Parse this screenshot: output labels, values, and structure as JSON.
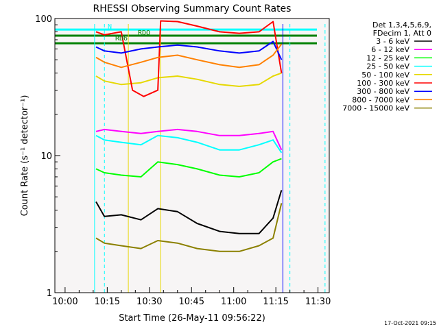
{
  "chart_data": {
    "type": "line",
    "title": "RHESSI Observing Summary Count Rates",
    "xlabel": "Start Time (26-May-11 09:56:22)",
    "ylabel": "Count Rate (s⁻¹ detector⁻¹)",
    "yscale": "log",
    "ylim": [
      1,
      100
    ],
    "xlim": [
      "09:56:22",
      "11:34:00"
    ],
    "y_ticks": [
      "1",
      "10",
      "100"
    ],
    "x_ticks": [
      "10:00",
      "10:15",
      "10:30",
      "10:45",
      "11:00",
      "11:15",
      "11:30"
    ],
    "footer": "17-Oct-2021 09:15",
    "legend_header": [
      "Det 1,3,4,5,6,9,",
      "FDecim 1, Att 0"
    ],
    "annotations": [
      "RDO",
      "RD6",
      "N"
    ],
    "series": [
      {
        "name": "3 - 6 keV",
        "color": "#000000",
        "points": [
          [
            "10:11",
            4.6
          ],
          [
            "10:14",
            3.6
          ],
          [
            "10:20",
            3.7
          ],
          [
            "10:27",
            3.4
          ],
          [
            "10:33",
            4.1
          ],
          [
            "10:40",
            3.9
          ],
          [
            "10:47",
            3.2
          ],
          [
            "10:55",
            2.8
          ],
          [
            "11:02",
            2.7
          ],
          [
            "11:09",
            2.7
          ],
          [
            "11:14",
            3.5
          ],
          [
            "11:17",
            5.6
          ]
        ]
      },
      {
        "name": "6 - 12 keV",
        "color": "#ff00ff",
        "points": [
          [
            "10:11",
            15
          ],
          [
            "10:14",
            15.5
          ],
          [
            "10:20",
            15
          ],
          [
            "10:27",
            14.5
          ],
          [
            "10:33",
            15
          ],
          [
            "10:40",
            15.5
          ],
          [
            "10:47",
            15
          ],
          [
            "10:55",
            14
          ],
          [
            "11:02",
            14
          ],
          [
            "11:09",
            14.5
          ],
          [
            "11:14",
            15
          ],
          [
            "11:17",
            11
          ]
        ]
      },
      {
        "name": "12 - 25 keV",
        "color": "#00ff00",
        "points": [
          [
            "10:11",
            8
          ],
          [
            "10:14",
            7.5
          ],
          [
            "10:20",
            7.2
          ],
          [
            "10:27",
            7
          ],
          [
            "10:33",
            9
          ],
          [
            "10:40",
            8.6
          ],
          [
            "10:47",
            8
          ],
          [
            "10:55",
            7.2
          ],
          [
            "11:02",
            7
          ],
          [
            "11:09",
            7.5
          ],
          [
            "11:14",
            9
          ],
          [
            "11:17",
            9.5
          ]
        ]
      },
      {
        "name": "25 - 50 keV",
        "color": "#00ffff",
        "points": [
          [
            "10:11",
            14
          ],
          [
            "10:14",
            13
          ],
          [
            "10:20",
            12.5
          ],
          [
            "10:27",
            12
          ],
          [
            "10:33",
            14
          ],
          [
            "10:40",
            13.5
          ],
          [
            "10:47",
            12.5
          ],
          [
            "10:55",
            11
          ],
          [
            "11:02",
            11
          ],
          [
            "11:09",
            12
          ],
          [
            "11:14",
            13
          ],
          [
            "11:17",
            10.5
          ]
        ]
      },
      {
        "name": "50 - 100 keV",
        "color": "#e6d800",
        "points": [
          [
            "10:11",
            38
          ],
          [
            "10:14",
            35
          ],
          [
            "10:20",
            33
          ],
          [
            "10:27",
            34
          ],
          [
            "10:33",
            37
          ],
          [
            "10:40",
            38
          ],
          [
            "10:47",
            36
          ],
          [
            "10:55",
            33
          ],
          [
            "11:02",
            32
          ],
          [
            "11:09",
            33
          ],
          [
            "11:14",
            38
          ],
          [
            "11:17",
            40
          ]
        ]
      },
      {
        "name": "100 - 300 keV",
        "color": "#ff0000",
        "points": [
          [
            "10:11",
            80
          ],
          [
            "10:14",
            76
          ],
          [
            "10:20",
            80
          ],
          [
            "10:24",
            30
          ],
          [
            "10:28",
            27
          ],
          [
            "10:33",
            30
          ],
          [
            "10:34",
            96
          ],
          [
            "10:40",
            95
          ],
          [
            "10:47",
            88
          ],
          [
            "10:55",
            80
          ],
          [
            "11:02",
            78
          ],
          [
            "11:09",
            80
          ],
          [
            "11:14",
            95
          ],
          [
            "11:17",
            40
          ]
        ]
      },
      {
        "name": "300 - 800 keV",
        "color": "#0000ff",
        "points": [
          [
            "10:11",
            62
          ],
          [
            "10:14",
            58
          ],
          [
            "10:20",
            56
          ],
          [
            "10:27",
            60
          ],
          [
            "10:33",
            62
          ],
          [
            "10:40",
            64
          ],
          [
            "10:47",
            62
          ],
          [
            "10:55",
            58
          ],
          [
            "11:02",
            56
          ],
          [
            "11:09",
            58
          ],
          [
            "11:14",
            68
          ],
          [
            "11:17",
            50
          ]
        ]
      },
      {
        "name": "800 - 7000 keV",
        "color": "#ff8000",
        "points": [
          [
            "10:11",
            52
          ],
          [
            "10:14",
            48
          ],
          [
            "10:20",
            44
          ],
          [
            "10:27",
            48
          ],
          [
            "10:33",
            52
          ],
          [
            "10:40",
            54
          ],
          [
            "10:47",
            50
          ],
          [
            "10:55",
            46
          ],
          [
            "11:02",
            44
          ],
          [
            "11:09",
            46
          ],
          [
            "11:14",
            54
          ],
          [
            "11:17",
            65
          ]
        ]
      },
      {
        "name": "7000 - 15000 keV",
        "color": "#8b8000",
        "points": [
          [
            "10:11",
            2.5
          ],
          [
            "10:14",
            2.3
          ],
          [
            "10:20",
            2.2
          ],
          [
            "10:27",
            2.1
          ],
          [
            "10:33",
            2.4
          ],
          [
            "10:40",
            2.3
          ],
          [
            "10:47",
            2.1
          ],
          [
            "10:55",
            2.0
          ],
          [
            "11:02",
            2.0
          ],
          [
            "11:09",
            2.2
          ],
          [
            "11:14",
            2.5
          ],
          [
            "11:17",
            4.5
          ]
        ]
      }
    ],
    "hlines": [
      {
        "label": "N",
        "color": "#00ffff",
        "y": 83
      },
      {
        "label": "RDO",
        "color": "#008000",
        "y": 75
      },
      {
        "label": "RD6",
        "color": "#008000",
        "y": 66
      }
    ],
    "vlines": [
      {
        "time": "10:10:30",
        "color": "#00ffff",
        "style": "solid"
      },
      {
        "time": "10:14:00",
        "color": "#00ffff",
        "style": "dashed"
      },
      {
        "time": "10:22:30",
        "color": "#e6d800",
        "style": "solid"
      },
      {
        "time": "10:34:00",
        "color": "#e6d800",
        "style": "solid"
      },
      {
        "time": "11:17:30",
        "color": "#0000ff",
        "style": "solid"
      },
      {
        "time": "11:20:00",
        "color": "#00ffff",
        "style": "dashed"
      },
      {
        "time": "11:32:30",
        "color": "#00ffff",
        "style": "dashed"
      }
    ]
  }
}
